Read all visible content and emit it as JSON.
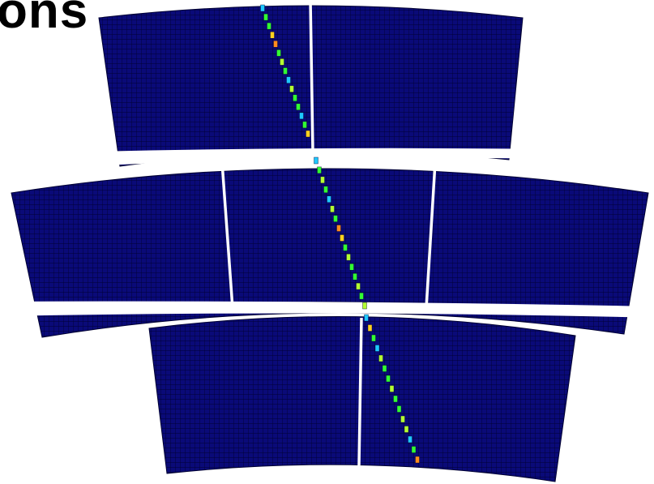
{
  "title_fragment": "ons",
  "colors": {
    "cell_fill": "#0a0a78",
    "cell_grid": "#000033",
    "gap": "#ffffff",
    "hit_colors": [
      "#1ec8ff",
      "#32ff32",
      "#b4ff32",
      "#ffd21e",
      "#ff8c1e"
    ]
  },
  "tracks": [
    {
      "panel": "top",
      "hits": [
        0,
        1,
        1,
        3,
        4,
        1,
        2,
        1,
        0,
        2,
        1,
        1,
        0,
        1,
        3
      ]
    },
    {
      "panel": "middle",
      "hits": [
        0,
        1,
        2,
        1,
        0,
        2,
        1,
        4,
        3,
        1,
        2,
        1,
        1,
        2,
        1,
        2
      ]
    },
    {
      "panel": "bottom",
      "hits": [
        0,
        3,
        1,
        0,
        2,
        1,
        1,
        2,
        1,
        1,
        2,
        2,
        0,
        1,
        4
      ]
    }
  ]
}
